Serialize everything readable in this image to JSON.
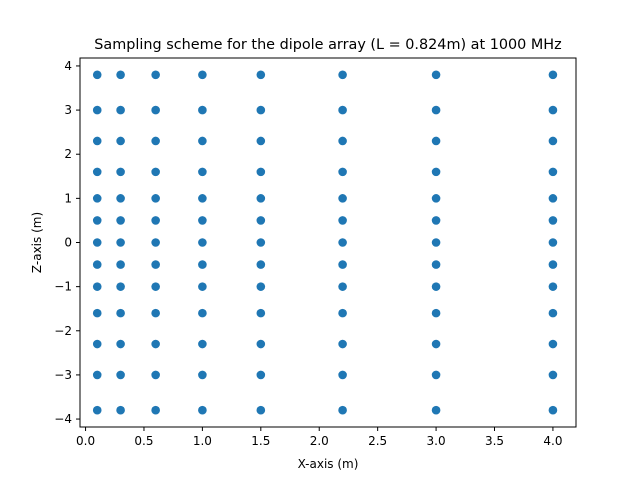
{
  "chart_data": {
    "type": "scatter",
    "title": "Sampling scheme for the dipole array (L = 0.824m) at 1000 MHz",
    "xlabel": "X-axis (m)",
    "ylabel": "Z-axis (m)",
    "x_positions": [
      0.1,
      0.3,
      0.6,
      1.0,
      1.5,
      2.2,
      3.0,
      4.0
    ],
    "z_positions": [
      -3.8,
      -3.0,
      -2.3,
      -1.6,
      -1.0,
      -0.5,
      0.0,
      0.5,
      1.0,
      1.6,
      2.3,
      3.0,
      3.8
    ],
    "xlim": [
      -0.0475,
      4.1975
    ],
    "ylim": [
      -4.18,
      4.18
    ],
    "xticks": [
      0.0,
      0.5,
      1.0,
      1.5,
      2.0,
      2.5,
      3.0,
      3.5,
      4.0
    ],
    "xtick_labels": [
      "0.0",
      "0.5",
      "1.0",
      "1.5",
      "2.0",
      "2.5",
      "3.0",
      "3.5",
      "4.0"
    ],
    "yticks": [
      -4,
      -3,
      -2,
      -1,
      0,
      1,
      2,
      3,
      4
    ],
    "ytick_labels": [
      "−4",
      "−3",
      "−2",
      "−1",
      "0",
      "1",
      "2",
      "3",
      "4"
    ],
    "marker_color": "#1f77b4",
    "grid": false,
    "legend": "none"
  }
}
